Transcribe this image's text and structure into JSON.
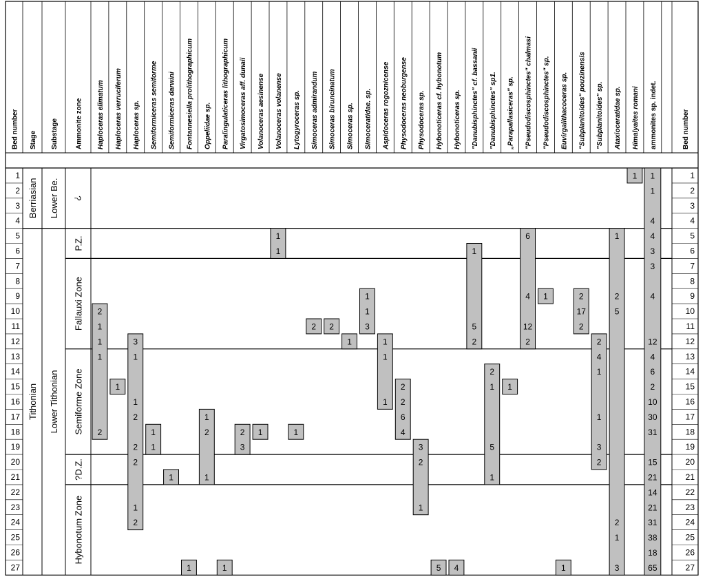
{
  "chart_data": {
    "type": "table",
    "columns_left": [
      "Bed number",
      "Stage",
      "Substage",
      "Ammonite zone"
    ],
    "taxa": [
      {
        "name": "Haploceras elimatum",
        "italic": true,
        "counts": {
          "10": "2",
          "11": "1",
          "12": "1",
          "13": "1",
          "18": "2"
        }
      },
      {
        "name": "Haploceras verruciferum",
        "italic": true,
        "counts": {
          "15": "1"
        }
      },
      {
        "name": "Haploceras sp.",
        "italic": true,
        "counts": {
          "12": "3",
          "13": "1",
          "16": "1",
          "17": "2",
          "19": "2",
          "20": "2",
          "23": "1",
          "24": "2"
        }
      },
      {
        "name": "Semiformiceras semiforme",
        "italic": true,
        "counts": {
          "18": "1",
          "19": "1"
        }
      },
      {
        "name": "Semiformiceras darwini",
        "italic": true,
        "counts": {
          "21": "1"
        }
      },
      {
        "name": "Fontannesiella prolithographicum",
        "italic": true,
        "counts": {
          "27": "1"
        }
      },
      {
        "name": "Oppeliidae sp.",
        "italic": true,
        "counts": {
          "17": "1",
          "18": "2",
          "21": "1"
        }
      },
      {
        "name": "Paralingulaticeras lithographicum",
        "italic": true,
        "counts": {
          "27": "1"
        }
      },
      {
        "name": "Virgatosimoceras aff. dunaii",
        "italic": true,
        "counts": {
          "18": "2",
          "19": "3"
        }
      },
      {
        "name": "Volanoceras aesinense",
        "italic": true,
        "counts": {
          "18": "1"
        }
      },
      {
        "name": "Volanoceras volanense",
        "italic": true,
        "counts": {
          "5": "1",
          "6": "1"
        }
      },
      {
        "name": "Lytogyroceras sp.",
        "italic": true,
        "counts": {
          "18": "1"
        }
      },
      {
        "name": "Simoceras admirandum",
        "italic": true,
        "counts": {
          "11": "2"
        }
      },
      {
        "name": "Simoceras biruncinatum",
        "italic": true,
        "counts": {
          "11": "2"
        }
      },
      {
        "name": "Simoceras sp.",
        "italic": true,
        "counts": {
          "12": "1"
        }
      },
      {
        "name": "Simoceratidae. sp.",
        "italic": true,
        "counts": {
          "9": "1",
          "10": "1",
          "11": "3"
        }
      },
      {
        "name": "Aspidoceras rogoznicense",
        "italic": true,
        "counts": {
          "12": "1",
          "13": "1",
          "16": "1"
        }
      },
      {
        "name": "Physodoceras neoburgense",
        "italic": true,
        "counts": {
          "15": "2",
          "16": "2",
          "17": "6",
          "18": "4"
        }
      },
      {
        "name": "Physodoceras sp.",
        "italic": true,
        "counts": {
          "19": "3",
          "20": "2",
          "23": "1"
        }
      },
      {
        "name": "Hybonoticeras cf. hybonotum",
        "italic": true,
        "counts": {
          "27": "5"
        }
      },
      {
        "name": "Hybonoticeras sp.",
        "italic": true,
        "counts": {
          "27": "4"
        }
      },
      {
        "name": "\"Danubisphinctes\" cf. bassanii",
        "italic": true,
        "counts": {
          "6": "1",
          "11": "5",
          "12": "2"
        }
      },
      {
        "name": "\"Danubisphinctes\" sp1.",
        "italic": true,
        "counts": {
          "14": "2",
          "15": "1",
          "19": "5",
          "21": "1"
        }
      },
      {
        "name": "„Parapallasiceras\" sp.",
        "italic": true,
        "counts": {
          "15": "1"
        }
      },
      {
        "name": "\"Pseudodiscosphinctes\" chalmasi",
        "italic": true,
        "counts": {
          "5": "6",
          "9": "4",
          "11": "12",
          "12": "2"
        }
      },
      {
        "name": "\"Pseudodiscosphinctes\" sp.",
        "italic": true,
        "counts": {
          "9": "1"
        }
      },
      {
        "name": "Euvirgalithacoceras sp.",
        "italic": true,
        "counts": {
          "27": "1"
        }
      },
      {
        "name": "\"Subplanitoides\" pouzinensis",
        "italic": true,
        "counts": {
          "9": "2",
          "10": "17",
          "11": "2"
        }
      },
      {
        "name": "\"Subplanitoides\" sp.",
        "italic": true,
        "counts": {
          "12": "2",
          "13": "4",
          "14": "1",
          "17": "1",
          "19": "3",
          "20": "2"
        }
      },
      {
        "name": "Ataxioceratidae sp.",
        "italic": true,
        "counts": {
          "5": "1",
          "9": "2",
          "10": "5",
          "24": "2",
          "25": "1",
          "27": "3"
        }
      },
      {
        "name": "Himalyaites romani",
        "italic": true,
        "counts": {
          "1": "1"
        }
      },
      {
        "name": "ammonites sp. indet.",
        "italic": false,
        "counts": {
          "1": "1",
          "2": "1",
          "4": "4",
          "5": "4",
          "6": "3",
          "7": "3",
          "9": "4",
          "12": "12",
          "13": "4",
          "14": "6",
          "15": "2",
          "16": "10",
          "17": "30",
          "18": "31",
          "20": "15",
          "21": "21",
          "22": "14",
          "23": "21",
          "24": "31",
          "25": "38",
          "26": "18",
          "27": "65"
        }
      }
    ],
    "beds": [
      "1",
      "2",
      "3",
      "4",
      "5",
      "6",
      "7",
      "8",
      "9",
      "10",
      "11",
      "12",
      "13",
      "14",
      "15",
      "16",
      "17",
      "18",
      "19",
      "20",
      "21",
      "22",
      "23",
      "24",
      "25",
      "26",
      "27"
    ],
    "bed_number_right_header": "Bed number",
    "stages": [
      {
        "label": "Berriasian",
        "from": 1,
        "to": 4
      },
      {
        "label": "Tithonian",
        "from": 5,
        "to": 27
      }
    ],
    "substages": [
      {
        "label": "Lower Be.",
        "from": 1,
        "to": 4
      },
      {
        "label": "Lower Tithonian",
        "from": 5,
        "to": 27
      }
    ],
    "zones": [
      {
        "label": "?",
        "from": 1,
        "to": 4,
        "rotate": false
      },
      {
        "label": "P.Z.",
        "from": 5,
        "to": 6,
        "rotate": true
      },
      {
        "label": "Fallauxi Zone",
        "from": 7,
        "to": 12,
        "rotate": true
      },
      {
        "label": "Semiforme Zone",
        "from": 13,
        "to": 19,
        "rotate": true
      },
      {
        "label": "?D.Z.",
        "from": 20,
        "to": 21,
        "rotate": true
      },
      {
        "label": "Hybonotum Zone",
        "from": 22,
        "to": 27,
        "rotate": true
      }
    ],
    "colors": {
      "bar": "#c0c0c0",
      "line": "#000000"
    }
  }
}
